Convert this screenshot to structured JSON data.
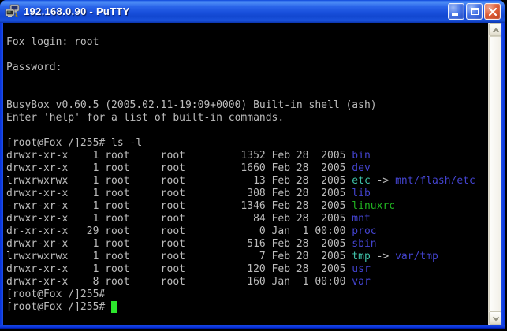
{
  "window": {
    "title": "192.168.0.90 - PuTTY",
    "controls": {
      "minimize": "minimize-window",
      "maximize": "maximize-window",
      "close": "close-window"
    }
  },
  "colors": {
    "fg": "#bcbcbc",
    "dir": "#4343ce",
    "lnk": "#3fc0a8",
    "exe": "#21b421",
    "cur": "#2ce62c"
  },
  "terminal": {
    "lines": [
      [],
      [
        {
          "t": "Fox login: root",
          "c": "fg"
        }
      ],
      [],
      [
        {
          "t": "Password:",
          "c": "fg"
        }
      ],
      [],
      [],
      [
        {
          "t": "BusyBox v0.60.5 (2005.02.11-19:09+0000) Built-in shell (ash)",
          "c": "fg"
        }
      ],
      [
        {
          "t": "Enter 'help' for a list of built-in commands.",
          "c": "fg"
        }
      ],
      [],
      [
        {
          "t": "[root@Fox /]255# ls -l",
          "c": "fg"
        }
      ],
      [
        {
          "t": "drwxr-xr-x    1 root     root         1352 Feb 28  2005 ",
          "c": "fg"
        },
        {
          "t": "bin",
          "c": "dir"
        }
      ],
      [
        {
          "t": "drwxr-xr-x    1 root     root         1660 Feb 28  2005 ",
          "c": "fg"
        },
        {
          "t": "dev",
          "c": "dir"
        }
      ],
      [
        {
          "t": "lrwxrwxrwx    1 root     root           13 Feb 28  2005 ",
          "c": "fg"
        },
        {
          "t": "etc",
          "c": "lnk"
        },
        {
          "t": " -> ",
          "c": "fg"
        },
        {
          "t": "mnt/flash/etc",
          "c": "dir"
        }
      ],
      [
        {
          "t": "drwxr-xr-x    1 root     root          308 Feb 28  2005 ",
          "c": "fg"
        },
        {
          "t": "lib",
          "c": "dir"
        }
      ],
      [
        {
          "t": "-rwxr-xr-x    1 root     root         1346 Feb 28  2005 ",
          "c": "fg"
        },
        {
          "t": "linuxrc",
          "c": "exe"
        }
      ],
      [
        {
          "t": "drwxr-xr-x    1 root     root           84 Feb 28  2005 ",
          "c": "fg"
        },
        {
          "t": "mnt",
          "c": "dir"
        }
      ],
      [
        {
          "t": "dr-xr-xr-x   29 root     root            0 Jan  1 00:00 ",
          "c": "fg"
        },
        {
          "t": "proc",
          "c": "dir"
        }
      ],
      [
        {
          "t": "drwxr-xr-x    1 root     root          516 Feb 28  2005 ",
          "c": "fg"
        },
        {
          "t": "sbin",
          "c": "dir"
        }
      ],
      [
        {
          "t": "lrwxrwxrwx    1 root     root            7 Feb 28  2005 ",
          "c": "fg"
        },
        {
          "t": "tmp",
          "c": "lnk"
        },
        {
          "t": " -> ",
          "c": "fg"
        },
        {
          "t": "var/tmp",
          "c": "dir"
        }
      ],
      [
        {
          "t": "drwxr-xr-x    1 root     root          120 Feb 28  2005 ",
          "c": "fg"
        },
        {
          "t": "usr",
          "c": "dir"
        }
      ],
      [
        {
          "t": "drwxr-xr-x    8 root     root          160 Jan  1 00:00 ",
          "c": "fg"
        },
        {
          "t": "var",
          "c": "dir"
        }
      ],
      [
        {
          "t": "[root@Fox /]255#",
          "c": "fg"
        }
      ],
      [
        {
          "t": "[root@Fox /]255# ",
          "c": "fg"
        },
        {
          "t": " ",
          "c": "cur"
        }
      ]
    ]
  }
}
